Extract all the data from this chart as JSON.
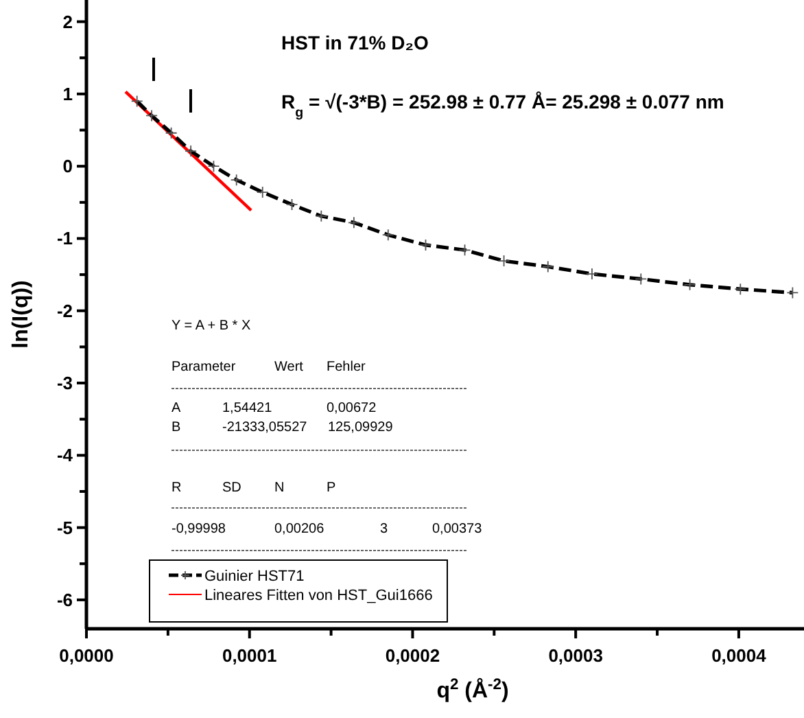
{
  "chart_data": {
    "type": "line",
    "title": "HST in 71% D₂O",
    "xlabel": "q$^{2}$ (Å$^{-2}$)",
    "ylabel": "ln(I(q))",
    "xlim": [
      0,
      0.00044
    ],
    "ylim": [
      -6.4,
      2.3
    ],
    "xticks": [
      {
        "value": 0,
        "label": "0,0000"
      },
      {
        "value": 5e-05,
        "label": null
      },
      {
        "value": 0.0001,
        "label": "0,0001"
      },
      {
        "value": 0.00015,
        "label": null
      },
      {
        "value": 0.0002,
        "label": "0,0002"
      },
      {
        "value": 0.00025,
        "label": null
      },
      {
        "value": 0.0003,
        "label": "0,0003"
      },
      {
        "value": 0.00035,
        "label": null
      },
      {
        "value": 0.0004,
        "label": "0,0004"
      }
    ],
    "yticks": [
      2,
      {
        "value": 1.5,
        "label": null
      },
      1,
      {
        "value": 0.5,
        "label": null
      },
      0,
      {
        "value": -0.5,
        "label": null
      },
      -1,
      {
        "value": -1.5,
        "label": null
      },
      -2,
      {
        "value": -2.5,
        "label": null
      },
      -3,
      {
        "value": -3.5,
        "label": null
      },
      -4,
      {
        "value": -4.5,
        "label": null
      },
      -5,
      {
        "value": -5.5,
        "label": null
      },
      -6
    ],
    "legend": "bottom left",
    "series": [
      {
        "name": "Guinier HST71",
        "color": "#000000",
        "marker": "cross",
        "line_style": "dashed",
        "x": [
          3.1e-05,
          4e-05,
          5.2e-05,
          6.4e-05,
          7.8e-05,
          9.2e-05,
          0.000108,
          0.000126,
          0.000144,
          0.000164,
          0.000185,
          0.000208,
          0.000232,
          0.000256,
          0.000283,
          0.00031,
          0.00034,
          0.00037,
          0.000401,
          0.000433
        ],
        "values": [
          0.9,
          0.7,
          0.46,
          0.21,
          0,
          -0.19,
          -0.36,
          -0.53,
          -0.69,
          -0.78,
          -0.95,
          -1.09,
          -1.16,
          -1.31,
          -1.39,
          -1.49,
          -1.56,
          -1.64,
          -1.7,
          -1.75
        ]
      },
      {
        "name": "Lineares Fitten von HST_Gui1666",
        "color": "#ff0000",
        "marker": "none",
        "line_style": "solid",
        "x": [
          2.4e-05,
          0.000101
        ],
        "values": [
          1.03,
          -0.61
        ]
      }
    ],
    "annotations": [
      "R$_{g}$ = √(-3*B) = 252.98 ± 0.77 Å= 25.298 ± 0.077 nm",
      "Y = A + B * X",
      "Parameter",
      "Wert",
      "Fehler",
      "A",
      "1,54421",
      "0,00672",
      "B",
      "-21333,05527",
      "125,09929",
      "R",
      "SD",
      "N",
      "P",
      "-0,99998",
      "0,00206",
      "3",
      "0,00373"
    ]
  }
}
